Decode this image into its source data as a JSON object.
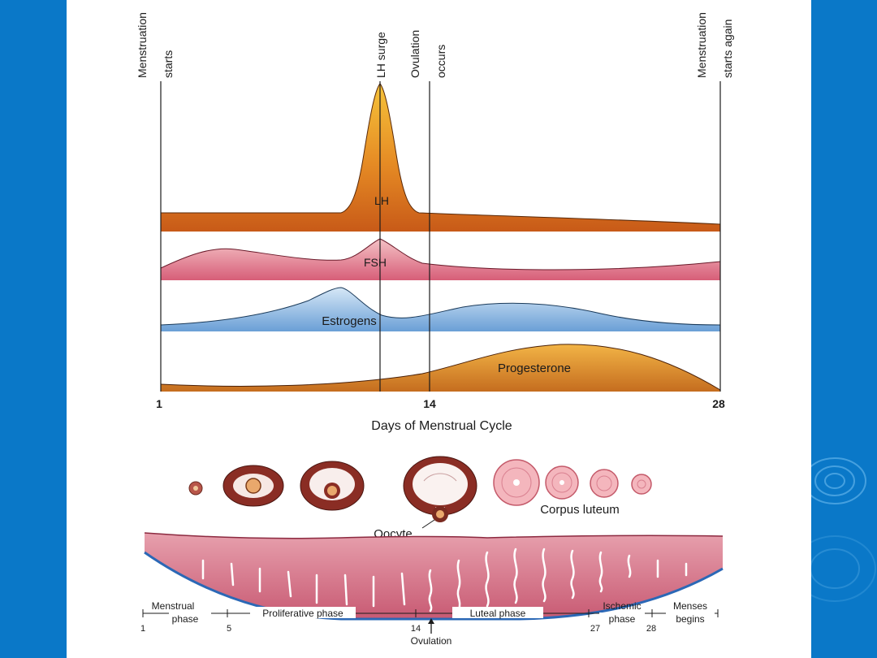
{
  "slide": {
    "background_color": "#0a78c8",
    "panel_color": "#ffffff"
  },
  "timeline_markers": {
    "menstruation_starts": [
      "Menstruation",
      "starts"
    ],
    "lh_surge": "LH surge",
    "ovulation_occurs": [
      "Ovulation",
      "occurs"
    ],
    "menstruation_starts_again": [
      "Menstruation",
      "starts again"
    ]
  },
  "hormone_bands": {
    "lh": {
      "label": "LH",
      "color": "#d96b1c"
    },
    "fsh": {
      "label": "FSH",
      "color": "#d9647a"
    },
    "estrogens": {
      "label": "Estrogens",
      "color": "#6aa0d8"
    },
    "progesterone": {
      "label": "Progesterone",
      "color": "#cf7a22"
    }
  },
  "days_axis": {
    "ticks": [
      "1",
      "14",
      "28"
    ],
    "title": "Days of Menstrual Cycle"
  },
  "ovary_labels": {
    "oocyte": "Oocyte",
    "corpus_luteum": "Corpus luteum"
  },
  "phase_bar": {
    "menstrual": [
      "Menstrual",
      "phase"
    ],
    "proliferative": "Proliferative phase",
    "luteal": "Luteal phase",
    "ischemic": [
      "Ischemic",
      "phase"
    ],
    "menses": [
      "Menses",
      "begins"
    ],
    "day_numbers": [
      "1",
      "5",
      "14",
      "27",
      "28"
    ],
    "ovulation": "Ovulation"
  }
}
